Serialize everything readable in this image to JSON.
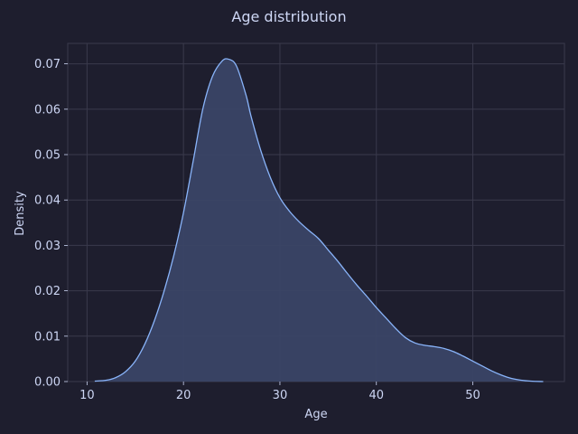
{
  "chart_data": {
    "type": "area",
    "title": "Age distribution",
    "xlabel": "Age",
    "ylabel": "Density",
    "xlim": [
      8,
      59.5
    ],
    "ylim": [
      0,
      0.0745
    ],
    "grid": true,
    "x_ticks": [
      10,
      20,
      30,
      40,
      50
    ],
    "y_ticks": [
      0.0,
      0.01,
      0.02,
      0.03,
      0.04,
      0.05,
      0.06,
      0.07
    ],
    "x_tick_labels": [
      "10",
      "20",
      "30",
      "40",
      "50"
    ],
    "y_tick_labels": [
      "0.00",
      "0.01",
      "0.02",
      "0.03",
      "0.04",
      "0.05",
      "0.06",
      "0.07"
    ],
    "series": [
      {
        "x": [
          10.8,
          12.0,
          13.0,
          14.0,
          15.0,
          16.0,
          17.0,
          18.0,
          19.0,
          20.0,
          21.0,
          22.0,
          23.0,
          24.0,
          24.7,
          25.5,
          26.5,
          27.0,
          28.0,
          29.0,
          30.0,
          31.0,
          32.0,
          33.0,
          34.0,
          35.0,
          36.0,
          37.0,
          38.0,
          39.0,
          40.0,
          41.0,
          42.0,
          43.0,
          44.0,
          45.0,
          46.0,
          47.0,
          48.0,
          49.0,
          50.0,
          51.0,
          52.0,
          53.0,
          54.0,
          55.0,
          56.0,
          57.3
        ],
        "y": [
          0.0001,
          0.0003,
          0.0009,
          0.0022,
          0.0045,
          0.0083,
          0.0135,
          0.02,
          0.0278,
          0.0372,
          0.0485,
          0.06,
          0.0672,
          0.0706,
          0.071,
          0.0695,
          0.063,
          0.0585,
          0.051,
          0.045,
          0.0405,
          0.0375,
          0.0352,
          0.0333,
          0.0315,
          0.029,
          0.0265,
          0.0238,
          0.0212,
          0.0188,
          0.0163,
          0.014,
          0.0117,
          0.0097,
          0.0085,
          0.008,
          0.0077,
          0.0073,
          0.0066,
          0.0056,
          0.0045,
          0.0034,
          0.0023,
          0.0014,
          0.0007,
          0.0003,
          0.0001,
          0.0
        ]
      }
    ],
    "colors": {
      "background": "#1e1e2e",
      "grid": "#3a3a4c",
      "line": "#89b4fa",
      "fill": "#3a4566",
      "text": "#cdd6f4"
    }
  }
}
